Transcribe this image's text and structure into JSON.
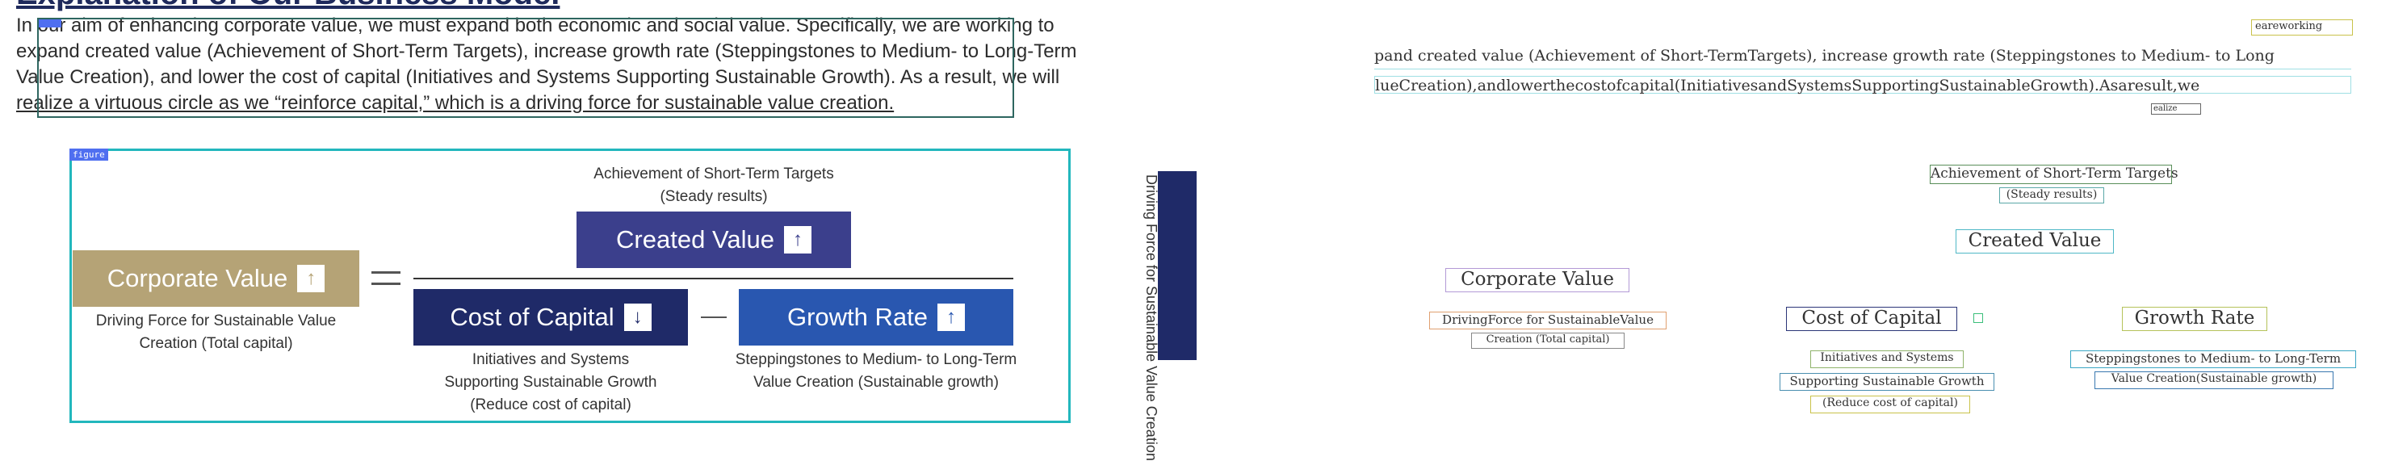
{
  "page": {
    "heading_partial": "Explanation of Our Business Model",
    "paragraph_lines": [
      "In our aim of enhancing corporate value, we must expand both economic and social value. Specifically, we are working to",
      "expand created value (Achievement of Short-Term Targets), increase growth rate (Steppingstones to Medium- to Long-Term",
      "Value Creation), and lower the cost of capital (Initiatives and Systems Supporting Sustainable Growth). As a result, we will",
      "realize a virtuous circle as we “reinforce capital,” which is a driving force for sustainable value creation."
    ],
    "figure_tag": "figure"
  },
  "diagram": {
    "corporate_value": {
      "label": "Corporate Value",
      "arrow": "↑",
      "caption_lines": [
        "Driving Force for Sustainable Value",
        "Creation (Total capital)"
      ]
    },
    "created_value": {
      "label": "Created Value",
      "arrow": "↑",
      "caption_lines": [
        "Achievement of Short-Term Targets",
        "(Steady results)"
      ]
    },
    "cost_of_capital": {
      "label": "Cost of Capital",
      "arrow": "↓",
      "caption_lines": [
        "Initiatives and Systems",
        "Supporting Sustainable Growth",
        "(Reduce cost of capital)"
      ]
    },
    "growth_rate": {
      "label": "Growth Rate",
      "arrow": "↑",
      "caption_lines": [
        "Steppingstones to Medium- to Long-Term",
        "Value Creation (Sustainable growth)"
      ]
    },
    "side_label": "Driving Force for Sustainable Value Creation"
  },
  "ocr_panel": {
    "top_right_tag": "eareworking",
    "line1": "pand created value (Achievement of Short-TermTargets), increase growth rate (Steppingstones to Medium- to Long",
    "line2": "lueCreation),andlowerthecostofcapital(InitiativesandSystemsSupportingSustainableGrowth).Asaresult,we",
    "small_tag": "ealize",
    "achievement": "Achievement of Short-Term Targets",
    "steady": "(Steady results)",
    "created_value": "Created Value",
    "corporate_value": "Corporate Value",
    "driving_force": "DrivingForce for SustainableValue",
    "creation_total": "Creation (Total capital)",
    "cost_of_capital": "Cost of Capital",
    "growth_rate": "Growth Rate",
    "initiatives": "Initiatives and Systems",
    "supporting": "Supporting Sustainable Growth",
    "reduce": "(Reduce cost of capital)",
    "steppingstones": "Steppingstones to Medium- to Long-Term",
    "value_creation": "Value Creation(Sustainable growth)"
  },
  "colors": {
    "corporate_gold": "#b5a376",
    "created_indigo": "#3b3f8c",
    "capital_navy": "#1f2a68",
    "growth_blue": "#2957b0",
    "figure_cyan": "#22b7bd",
    "tag_blue": "#4f6ff0"
  }
}
